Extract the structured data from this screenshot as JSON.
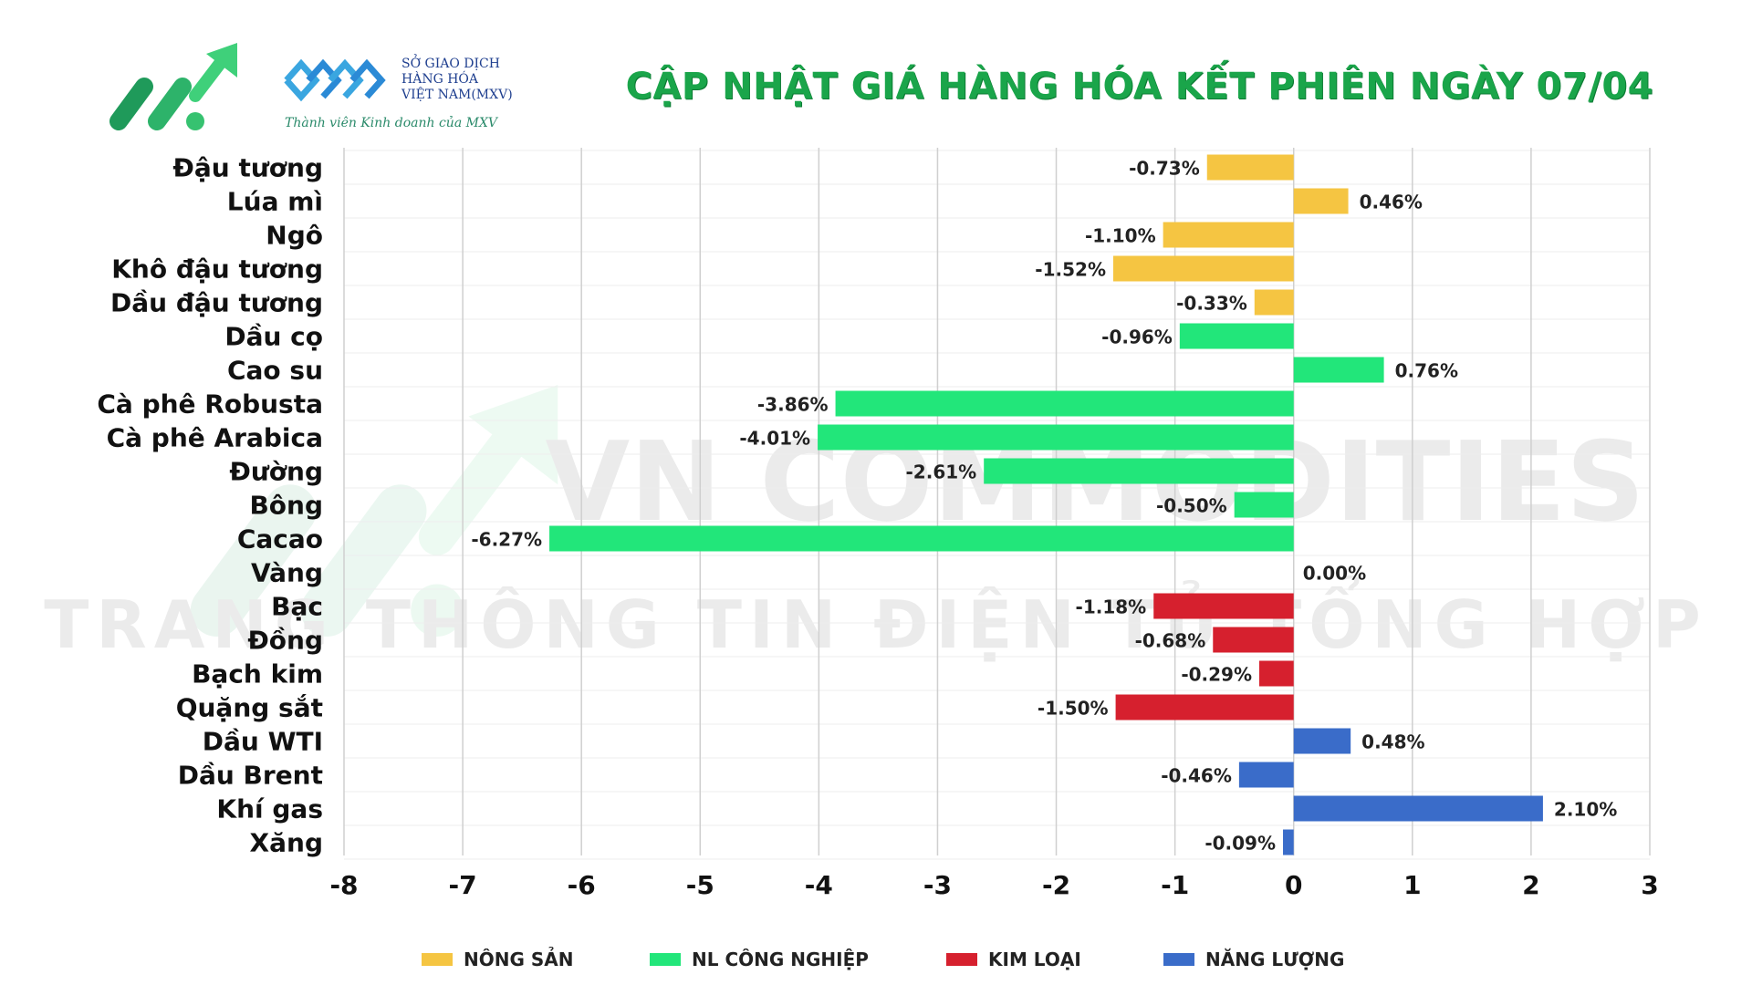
{
  "header": {
    "title": "CẬP NHẬT GIÁ HÀNG HÓA KẾT PHIÊN NGÀY 07/04",
    "mxv_lines": [
      "SỞ GIAO DỊCH",
      "HÀNG HÓA",
      "VIỆT NAM(MXV)"
    ],
    "mxv_member": "Thành viên Kinh doanh của MXV"
  },
  "watermark": {
    "line1": "VN COMMODITIES",
    "line2": "TRANG THÔNG TIN ĐIỆN TỬ TỔNG HỢP"
  },
  "colors": {
    "nong_san": "#f5c542",
    "nl_cong_nghiep": "#22e67a",
    "kim_loai": "#d6202e",
    "nang_luong": "#3a6cc9",
    "title": "#1aa54a"
  },
  "chart_data": {
    "type": "bar",
    "orientation": "horizontal",
    "categories": [
      "Đậu tương",
      "Lúa mì",
      "Ngô",
      "Khô đậu tương",
      "Dầu đậu tương",
      "Dầu cọ",
      "Cao su",
      "Cà phê Robusta",
      "Cà phê Arabica",
      "Đường",
      "Bông",
      "Cacao",
      "Vàng",
      "Bạc",
      "Đồng",
      "Bạch kim",
      "Quặng sắt",
      "Dầu WTI",
      "Dầu Brent",
      "Khí gas",
      "Xăng"
    ],
    "values": [
      -0.73,
      0.46,
      -1.1,
      -1.52,
      -0.33,
      -0.96,
      0.76,
      -3.86,
      -4.01,
      -2.61,
      -0.5,
      -6.27,
      0.0,
      -1.18,
      -0.68,
      -0.29,
      -1.5,
      0.48,
      -0.46,
      2.1,
      -0.09
    ],
    "value_labels": [
      "-0.73%",
      "0.46%",
      "-1.10%",
      "-1.52%",
      "-0.33%",
      "-0.96%",
      "0.76%",
      "-3.86%",
      "-4.01%",
      "-2.61%",
      "-0.50%",
      "-6.27%",
      "0.00%",
      "-1.18%",
      "-0.68%",
      "-0.29%",
      "-1.50%",
      "0.48%",
      "-0.46%",
      "2.10%",
      "-0.09%"
    ],
    "groups": [
      "nong_san",
      "nong_san",
      "nong_san",
      "nong_san",
      "nong_san",
      "nl_cong_nghiep",
      "nl_cong_nghiep",
      "nl_cong_nghiep",
      "nl_cong_nghiep",
      "nl_cong_nghiep",
      "nl_cong_nghiep",
      "nl_cong_nghiep",
      "kim_loai",
      "kim_loai",
      "kim_loai",
      "kim_loai",
      "kim_loai",
      "nang_luong",
      "nang_luong",
      "nang_luong",
      "nang_luong"
    ],
    "xlim": [
      -8,
      3
    ],
    "xticks": [
      -8,
      -7,
      -6,
      -5,
      -4,
      -3,
      -2,
      -1,
      0,
      1,
      2,
      3
    ],
    "grid": "vertical",
    "legend": [
      {
        "key": "nong_san",
        "label": "NÔNG SẢN"
      },
      {
        "key": "nl_cong_nghiep",
        "label": "NL CÔNG NGHIỆP"
      },
      {
        "key": "kim_loai",
        "label": "KIM LOẠI"
      },
      {
        "key": "nang_luong",
        "label": "NĂNG LƯỢNG"
      }
    ],
    "legend_position": "bottom"
  }
}
